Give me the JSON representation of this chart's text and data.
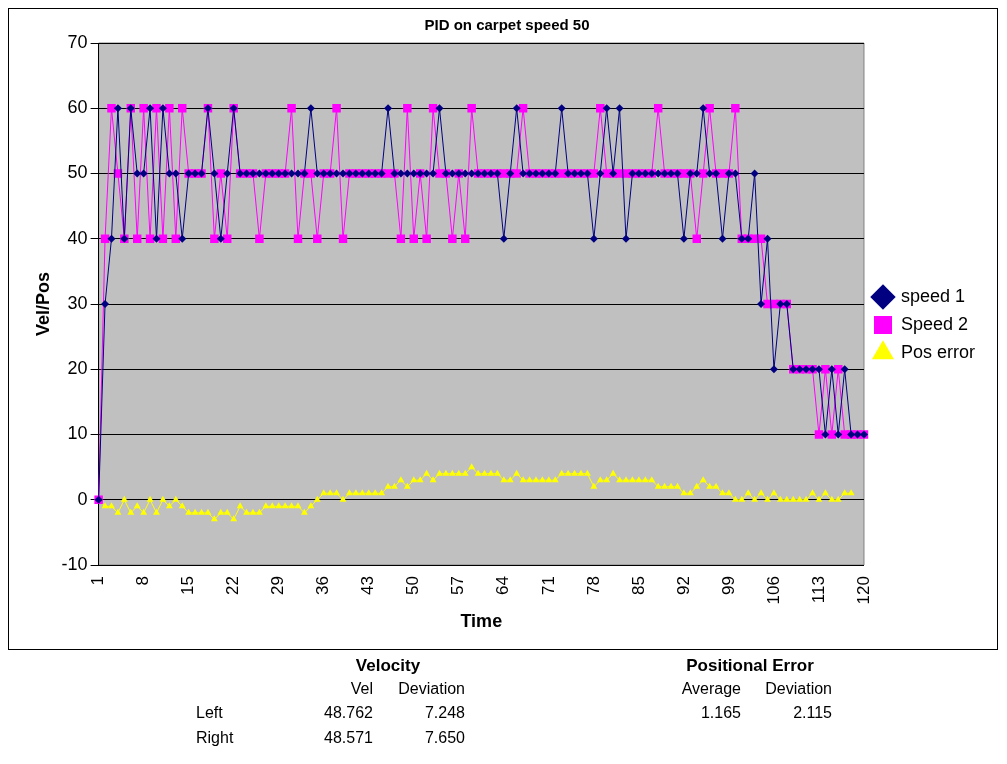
{
  "chart_data": {
    "type": "line",
    "title": "PID on carpet speed 50",
    "xlabel": "Time",
    "ylabel": "Vel/Pos",
    "categories": [
      "1",
      null,
      null,
      null,
      null,
      null,
      null,
      "8",
      null,
      null,
      null,
      null,
      null,
      null,
      "15",
      null,
      null,
      null,
      null,
      null,
      null,
      "22",
      null,
      null,
      null,
      null,
      null,
      null,
      "29",
      null,
      null,
      null,
      null,
      null,
      null,
      "36",
      null,
      null,
      null,
      null,
      null,
      null,
      "43",
      null,
      null,
      null,
      null,
      null,
      null,
      "50",
      null,
      null,
      null,
      null,
      null,
      null,
      "57",
      null,
      null,
      null,
      null,
      null,
      null,
      "64",
      null,
      null,
      null,
      null,
      null,
      null,
      "71",
      null,
      null,
      null,
      null,
      null,
      null,
      "78",
      null,
      null,
      null,
      null,
      null,
      null,
      "85",
      null,
      null,
      null,
      null,
      null,
      null,
      "92",
      null,
      null,
      null,
      null,
      null,
      null,
      "99",
      null,
      null,
      null,
      null,
      null,
      null,
      "106",
      null,
      null,
      null,
      null,
      null,
      null,
      "113",
      null,
      null,
      null,
      null,
      null,
      null,
      "120"
    ],
    "series": [
      {
        "name": "speed 1",
        "color": "#000080",
        "marker": "diamond",
        "values": [
          0,
          30,
          40,
          60,
          40,
          60,
          50,
          50,
          60,
          40,
          60,
          50,
          50,
          40,
          50,
          50,
          50,
          60,
          50,
          40,
          50,
          60,
          50,
          50,
          50,
          50,
          50,
          50,
          50,
          50,
          50,
          50,
          50,
          60,
          50,
          50,
          50,
          50,
          50,
          50,
          50,
          50,
          50,
          50,
          50,
          60,
          50,
          50,
          50,
          50,
          50,
          50,
          50,
          60,
          50,
          50,
          50,
          50,
          50,
          50,
          50,
          50,
          50,
          40,
          50,
          60,
          50,
          50,
          50,
          50,
          50,
          50,
          60,
          50,
          50,
          50,
          50,
          40,
          50,
          60,
          50,
          60,
          40,
          50,
          50,
          50,
          50,
          50,
          50,
          50,
          50,
          40,
          50,
          50,
          60,
          50,
          50,
          40,
          50,
          50,
          40,
          40,
          50,
          30,
          40,
          20,
          30,
          30,
          20,
          20,
          20,
          20,
          20,
          10,
          20,
          10,
          20,
          10,
          10,
          10
        ]
      },
      {
        "name": "Speed 2",
        "color": "#ff00ff",
        "marker": "square",
        "values": [
          0,
          40,
          60,
          50,
          40,
          60,
          40,
          60,
          40,
          60,
          40,
          60,
          40,
          60,
          50,
          50,
          50,
          60,
          40,
          50,
          40,
          60,
          50,
          50,
          50,
          40,
          50,
          50,
          50,
          50,
          60,
          40,
          50,
          50,
          40,
          50,
          50,
          60,
          40,
          50,
          50,
          50,
          50,
          50,
          50,
          50,
          50,
          40,
          60,
          40,
          50,
          40,
          60,
          50,
          50,
          40,
          50,
          40,
          60,
          50,
          50,
          50,
          50,
          50,
          50,
          50,
          60,
          50,
          50,
          50,
          50,
          50,
          50,
          50,
          50,
          50,
          50,
          50,
          60,
          50,
          50,
          50,
          50,
          50,
          50,
          50,
          50,
          60,
          50,
          50,
          50,
          50,
          50,
          40,
          50,
          60,
          50,
          50,
          50,
          60,
          40,
          40,
          40,
          40,
          30,
          30,
          30,
          30,
          20,
          20,
          20,
          20,
          10,
          20,
          10,
          20,
          10,
          10,
          10,
          10
        ]
      },
      {
        "name": "Pos error",
        "color": "#ffff00",
        "marker": "triangle",
        "values": [
          0,
          -1,
          -1,
          -2,
          0,
          -2,
          -1,
          -2,
          0,
          -2,
          0,
          -1,
          0,
          -1,
          -2,
          -2,
          -2,
          -2,
          -3,
          -2,
          -2,
          -3,
          -1,
          -2,
          -2,
          -2,
          -1,
          -1,
          -1,
          -1,
          -1,
          -1,
          -2,
          -1,
          0,
          1,
          1,
          1,
          0,
          1,
          1,
          1,
          1,
          1,
          1,
          2,
          2,
          3,
          2,
          3,
          3,
          4,
          3,
          4,
          4,
          4,
          4,
          4,
          5,
          4,
          4,
          4,
          4,
          3,
          3,
          4,
          3,
          3,
          3,
          3,
          3,
          3,
          4,
          4,
          4,
          4,
          4,
          2,
          3,
          3,
          4,
          3,
          3,
          3,
          3,
          3,
          3,
          2,
          2,
          2,
          2,
          1,
          1,
          2,
          3,
          2,
          2,
          1,
          1,
          0,
          0,
          1,
          0,
          1,
          0,
          1,
          0,
          0,
          0,
          0,
          0,
          1,
          0,
          1,
          0,
          0,
          1,
          1,
          null,
          null
        ]
      }
    ],
    "ylim": [
      -10,
      70
    ],
    "yticks": [
      -10,
      0,
      10,
      20,
      30,
      40,
      50,
      60,
      70
    ],
    "grid": "y",
    "legend": "right",
    "annotations": [
      "Velocity",
      "Vel",
      "Deviation",
      "Left",
      "48.762",
      "7.248",
      "Right",
      "48.571",
      "7.650",
      "Positional Error",
      "Average",
      "Deviation",
      "1.165",
      "2.115"
    ]
  }
}
